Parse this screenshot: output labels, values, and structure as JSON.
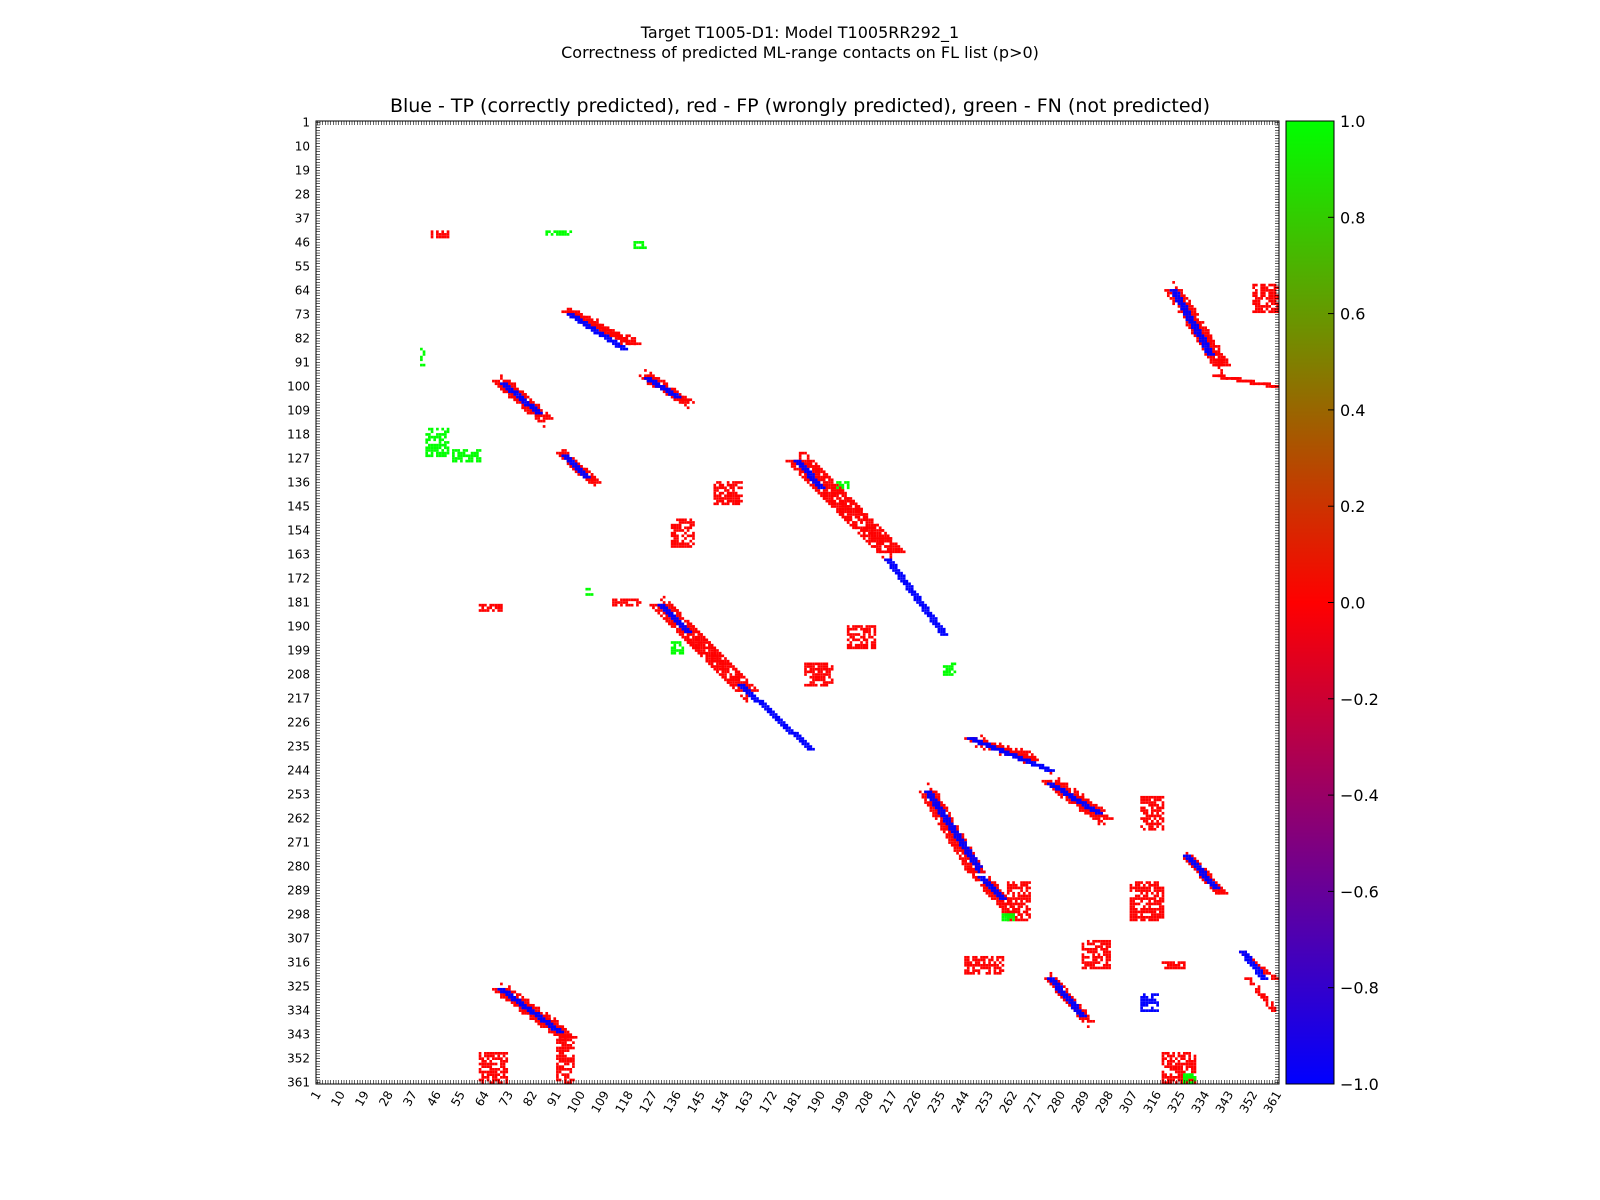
{
  "chart_data": {
    "type": "heatmap",
    "suptitle_line1": "Target T1005-D1: Model T1005RR292_1",
    "suptitle_line2": "Correctness of predicted ML-range contacts on FL list (p>0)",
    "title": "Blue - TP (correctly predicted), red - FP (wrongly predicted), green - FN (not predicted)",
    "axis_range": [
      1,
      361
    ],
    "tick_labels": [
      "1",
      "10",
      "19",
      "28",
      "37",
      "46",
      "55",
      "64",
      "73",
      "82",
      "91",
      "100",
      "109",
      "118",
      "127",
      "136",
      "145",
      "154",
      "163",
      "172",
      "181",
      "190",
      "199",
      "208",
      "217",
      "226",
      "235",
      "244",
      "253",
      "262",
      "271",
      "280",
      "289",
      "298",
      "307",
      "316",
      "325",
      "334",
      "343",
      "352",
      "361"
    ],
    "colorbar": {
      "range": [
        -1.0,
        1.0
      ],
      "tick_labels": [
        "1.0",
        "0.8",
        "0.6",
        "0.4",
        "0.2",
        "0.0",
        "−0.2",
        "−0.4",
        "−0.6",
        "−0.8",
        "−1.0"
      ],
      "colors": [
        "#00ff00",
        "#ff0000",
        "#0000ff"
      ]
    },
    "legend": {
      "tp": "Blue",
      "fp": "red",
      "fn": "green"
    },
    "regions": [
      {
        "kind": "diag",
        "x0": 95,
        "y0": 72,
        "x1": 120,
        "y1": 84,
        "w": 5,
        "cls": "fp"
      },
      {
        "kind": "diag",
        "x0": 96,
        "y0": 73,
        "x1": 116,
        "y1": 86,
        "w": 2,
        "cls": "tp"
      },
      {
        "kind": "diag",
        "x0": 124,
        "y0": 96,
        "x1": 140,
        "y1": 106,
        "w": 4,
        "cls": "fp"
      },
      {
        "kind": "diag",
        "x0": 125,
        "y0": 97,
        "x1": 136,
        "y1": 104,
        "w": 2,
        "cls": "tp"
      },
      {
        "kind": "diag",
        "x0": 70,
        "y0": 98,
        "x1": 86,
        "y1": 112,
        "w": 7,
        "cls": "fp"
      },
      {
        "kind": "diag",
        "x0": 71,
        "y0": 99,
        "x1": 84,
        "y1": 110,
        "w": 2,
        "cls": "tp"
      },
      {
        "kind": "diag",
        "x0": 93,
        "y0": 125,
        "x1": 105,
        "y1": 136,
        "w": 4,
        "cls": "fp"
      },
      {
        "kind": "diag",
        "x0": 94,
        "y0": 126,
        "x1": 102,
        "y1": 134,
        "w": 2,
        "cls": "tp"
      },
      {
        "kind": "diag",
        "x0": 182,
        "y0": 128,
        "x1": 216,
        "y1": 162,
        "w": 10,
        "cls": "fp"
      },
      {
        "kind": "diag",
        "x0": 181,
        "y0": 128,
        "x1": 190,
        "y1": 138,
        "w": 2,
        "cls": "tp"
      },
      {
        "kind": "diag",
        "x0": 215,
        "y0": 165,
        "x1": 236,
        "y1": 193,
        "w": 2,
        "cls": "tp"
      },
      {
        "kind": "diag",
        "x0": 130,
        "y0": 182,
        "x1": 162,
        "y1": 214,
        "w": 8,
        "cls": "fp"
      },
      {
        "kind": "diag",
        "x0": 130,
        "y0": 182,
        "x1": 140,
        "y1": 192,
        "w": 2,
        "cls": "tp"
      },
      {
        "kind": "diag",
        "x0": 160,
        "y0": 212,
        "x1": 186,
        "y1": 236,
        "w": 2,
        "cls": "tp"
      },
      {
        "kind": "diag",
        "x0": 246,
        "y0": 232,
        "x1": 270,
        "y1": 240,
        "w": 4,
        "cls": "fp"
      },
      {
        "kind": "diag",
        "x0": 246,
        "y0": 232,
        "x1": 276,
        "y1": 244,
        "w": 2,
        "cls": "tp"
      },
      {
        "kind": "diag",
        "x0": 276,
        "y0": 248,
        "x1": 296,
        "y1": 262,
        "w": 6,
        "cls": "fp"
      },
      {
        "kind": "diag",
        "x0": 276,
        "y0": 249,
        "x1": 294,
        "y1": 260,
        "w": 2,
        "cls": "tp"
      },
      {
        "kind": "diag",
        "x0": 230,
        "y0": 252,
        "x1": 248,
        "y1": 282,
        "w": 6,
        "cls": "fp"
      },
      {
        "kind": "diag",
        "x0": 230,
        "y0": 252,
        "x1": 250,
        "y1": 282,
        "w": 2,
        "cls": "tp"
      },
      {
        "kind": "diag",
        "x0": 250,
        "y0": 284,
        "x1": 262,
        "y1": 298,
        "w": 6,
        "cls": "fp"
      },
      {
        "kind": "diag",
        "x0": 250,
        "y0": 284,
        "x1": 258,
        "y1": 292,
        "w": 2,
        "cls": "tp"
      },
      {
        "kind": "diag",
        "x0": 322,
        "y0": 64,
        "x1": 340,
        "y1": 92,
        "w": 6,
        "cls": "fp"
      },
      {
        "kind": "diag",
        "x0": 322,
        "y0": 64,
        "x1": 336,
        "y1": 88,
        "w": 2,
        "cls": "tp"
      },
      {
        "kind": "diag",
        "x0": 338,
        "y0": 96,
        "x1": 360,
        "y1": 100,
        "w": 3,
        "cls": "fp"
      },
      {
        "kind": "diag",
        "x0": 327,
        "y0": 276,
        "x1": 340,
        "y1": 290,
        "w": 4,
        "cls": "fp"
      },
      {
        "kind": "diag",
        "x0": 327,
        "y0": 276,
        "x1": 338,
        "y1": 288,
        "w": 2,
        "cls": "tp"
      },
      {
        "kind": "diag",
        "x0": 276,
        "y0": 322,
        "x1": 290,
        "y1": 338,
        "w": 4,
        "cls": "fp"
      },
      {
        "kind": "diag",
        "x0": 276,
        "y0": 322,
        "x1": 288,
        "y1": 336,
        "w": 2,
        "cls": "tp"
      },
      {
        "kind": "diag",
        "x0": 70,
        "y0": 326,
        "x1": 95,
        "y1": 344,
        "w": 6,
        "cls": "fp"
      },
      {
        "kind": "diag",
        "x0": 70,
        "y0": 326,
        "x1": 92,
        "y1": 342,
        "w": 2,
        "cls": "tp"
      },
      {
        "kind": "diag",
        "x0": 348,
        "y0": 312,
        "x1": 360,
        "y1": 322,
        "w": 3,
        "cls": "fp"
      },
      {
        "kind": "diag",
        "x0": 348,
        "y0": 312,
        "x1": 356,
        "y1": 322,
        "w": 2,
        "cls": "tp"
      },
      {
        "kind": "diag",
        "x0": 350,
        "y0": 322,
        "x1": 360,
        "y1": 334,
        "w": 3,
        "cls": "fp"
      },
      {
        "kind": "blob",
        "x0": 352,
        "y0": 62,
        "x1": 361,
        "y1": 72,
        "cls": "fp"
      },
      {
        "kind": "blob",
        "x0": 62,
        "y0": 350,
        "x1": 72,
        "y1": 361,
        "cls": "fp"
      },
      {
        "kind": "blob",
        "x0": 91,
        "y0": 344,
        "x1": 97,
        "y1": 361,
        "cls": "fp"
      },
      {
        "kind": "blob",
        "x0": 318,
        "y0": 350,
        "x1": 330,
        "y1": 361,
        "cls": "fp"
      },
      {
        "kind": "blob",
        "x0": 306,
        "y0": 286,
        "x1": 318,
        "y1": 300,
        "cls": "fp"
      },
      {
        "kind": "blob",
        "x0": 288,
        "y0": 308,
        "x1": 298,
        "y1": 318,
        "cls": "fp"
      },
      {
        "kind": "blob",
        "x0": 260,
        "y0": 286,
        "x1": 268,
        "y1": 300,
        "cls": "fp"
      },
      {
        "kind": "blob",
        "x0": 134,
        "y0": 150,
        "x1": 142,
        "y1": 160,
        "cls": "fp"
      },
      {
        "kind": "blob",
        "x0": 150,
        "y0": 136,
        "x1": 160,
        "y1": 144,
        "cls": "fp"
      },
      {
        "kind": "blob",
        "x0": 200,
        "y0": 190,
        "x1": 210,
        "y1": 198,
        "cls": "fp"
      },
      {
        "kind": "blob",
        "x0": 184,
        "y0": 204,
        "x1": 194,
        "y1": 212,
        "cls": "fp"
      },
      {
        "kind": "blob",
        "x0": 310,
        "y0": 254,
        "x1": 318,
        "y1": 266,
        "cls": "fp"
      },
      {
        "kind": "blob",
        "x0": 310,
        "y0": 328,
        "x1": 316,
        "y1": 334,
        "cls": "tp"
      },
      {
        "kind": "blob",
        "x0": 318,
        "y0": 316,
        "x1": 326,
        "y1": 318,
        "cls": "fp"
      },
      {
        "kind": "blob",
        "x0": 244,
        "y0": 314,
        "x1": 258,
        "y1": 320,
        "cls": "fp"
      },
      {
        "kind": "blob",
        "x0": 44,
        "y0": 42,
        "x1": 50,
        "y1": 44,
        "cls": "fp"
      },
      {
        "kind": "blob",
        "x0": 62,
        "y0": 182,
        "x1": 70,
        "y1": 184,
        "cls": "fp"
      },
      {
        "kind": "blob",
        "x0": 112,
        "y0": 180,
        "x1": 122,
        "y1": 182,
        "cls": "fp"
      },
      {
        "kind": "blob",
        "x0": 42,
        "y0": 116,
        "x1": 50,
        "y1": 126,
        "cls": "fn"
      },
      {
        "kind": "blob",
        "x0": 52,
        "y0": 124,
        "x1": 62,
        "y1": 128,
        "cls": "fn"
      },
      {
        "kind": "blob",
        "x0": 120,
        "y0": 46,
        "x1": 124,
        "y1": 48,
        "cls": "fn"
      },
      {
        "kind": "blob",
        "x0": 87,
        "y0": 42,
        "x1": 96,
        "y1": 43,
        "cls": "fn"
      },
      {
        "kind": "blob",
        "x0": 40,
        "y0": 86,
        "x1": 41,
        "y1": 92,
        "cls": "fn"
      },
      {
        "kind": "blob",
        "x0": 134,
        "y0": 196,
        "x1": 138,
        "y1": 200,
        "cls": "fn"
      },
      {
        "kind": "blob",
        "x0": 196,
        "y0": 136,
        "x1": 200,
        "y1": 138,
        "cls": "fn"
      },
      {
        "kind": "blob",
        "x0": 236,
        "y0": 204,
        "x1": 240,
        "y1": 208,
        "cls": "fn"
      },
      {
        "kind": "blob",
        "x0": 258,
        "y0": 298,
        "x1": 262,
        "y1": 300,
        "cls": "fn"
      },
      {
        "kind": "blob",
        "x0": 326,
        "y0": 358,
        "x1": 330,
        "y1": 361,
        "cls": "fn"
      },
      {
        "kind": "blob",
        "x0": 102,
        "y0": 176,
        "x1": 104,
        "y1": 178,
        "cls": "fn"
      }
    ]
  }
}
